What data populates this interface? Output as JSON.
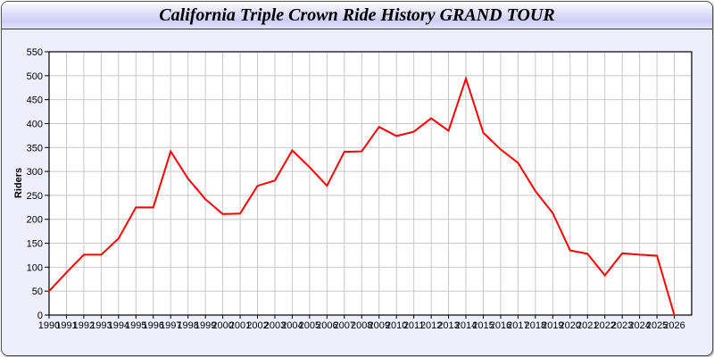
{
  "chart_data": {
    "type": "line",
    "title": "California Triple Crown Ride History GRAND TOUR",
    "xlabel": "",
    "ylabel": "Riders",
    "xlim": [
      1990,
      2027
    ],
    "ylim": [
      0,
      550
    ],
    "yticks": [
      0,
      50,
      100,
      150,
      200,
      250,
      300,
      350,
      400,
      450,
      500,
      550
    ],
    "grid": true,
    "line_color": "#ff0000",
    "x": [
      1990,
      1991,
      1992,
      1993,
      1994,
      1995,
      1996,
      1997,
      1998,
      1999,
      2000,
      2001,
      2002,
      2003,
      2004,
      2005,
      2006,
      2007,
      2008,
      2009,
      2010,
      2011,
      2012,
      2013,
      2014,
      2015,
      2016,
      2017,
      2018,
      2019,
      2020,
      2021,
      2022,
      2023,
      2024,
      2025,
      2026
    ],
    "series": [
      {
        "values": [
          50,
          89,
          126,
          126,
          160,
          225,
          225,
          342,
          285,
          242,
          211,
          212,
          270,
          281,
          344,
          309,
          270,
          341,
          342,
          393,
          374,
          383,
          411,
          385,
          494,
          381,
          346,
          318,
          259,
          213,
          135,
          128,
          83,
          129,
          126,
          124,
          0
        ]
      }
    ]
  }
}
